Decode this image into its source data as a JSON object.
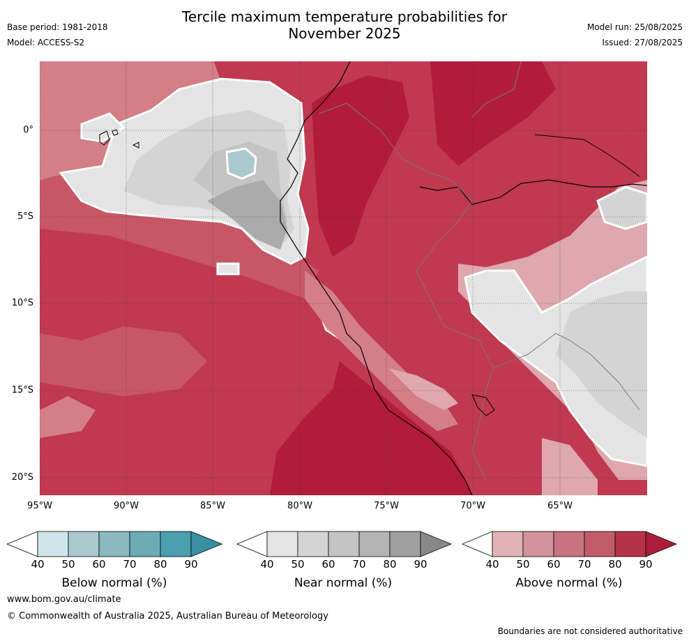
{
  "header": {
    "title_line1": "Tercile maximum temperature probabilities for",
    "title_line2": "November 2025",
    "base_period": "Base period: 1981-2018",
    "model": "Model: ACCESS-S2",
    "model_run": "Model run: 25/08/2025",
    "issued": "Issued: 27/08/2025"
  },
  "map": {
    "lat_labels": [
      "0°",
      "5°S",
      "10°S",
      "15°S",
      "20°S"
    ],
    "lon_labels": [
      "95°W",
      "90°W",
      "85°W",
      "80°W",
      "75°W",
      "70°W",
      "65°W"
    ],
    "colors": {
      "above_90": "#b31b3a",
      "above_80": "#c0394f",
      "above_70": "#c85766",
      "above_60": "#d47e88",
      "above_50": "#dea8ae",
      "near_40": "#e4e4e4",
      "near_50": "#d4d4d4",
      "near_60": "#c4c4c4",
      "near_70": "#ababab",
      "below_60": "#a9c9ce"
    }
  },
  "colorbars": [
    {
      "title": "Below normal (%)",
      "ticks": [
        "40",
        "50",
        "60",
        "70",
        "80",
        "90"
      ],
      "colors": [
        "#ffffff",
        "#cfe5e9",
        "#a9c9ce",
        "#8bb8c1",
        "#6aabb6",
        "#4a9fb0",
        "#3a90a3"
      ]
    },
    {
      "title": "Near normal (%)",
      "ticks": [
        "40",
        "50",
        "60",
        "70",
        "80",
        "90"
      ],
      "colors": [
        "#ffffff",
        "#e4e4e4",
        "#d4d4d4",
        "#c4c4c4",
        "#b4b4b4",
        "#a0a0a0",
        "#888888"
      ]
    },
    {
      "title": "Above normal (%)",
      "ticks": [
        "40",
        "50",
        "60",
        "70",
        "80",
        "90"
      ],
      "colors": [
        "#ffffff",
        "#dfb3b8",
        "#d3939b",
        "#ca7380",
        "#c25b69",
        "#b6324a",
        "#ad1c3b"
      ]
    }
  ],
  "footer": {
    "website": "www.bom.gov.au/climate",
    "copyright": "© Commonwealth of Australia 2025, Australian Bureau of Meteorology",
    "boundary_note": "Boundaries are not considered authoritative"
  }
}
